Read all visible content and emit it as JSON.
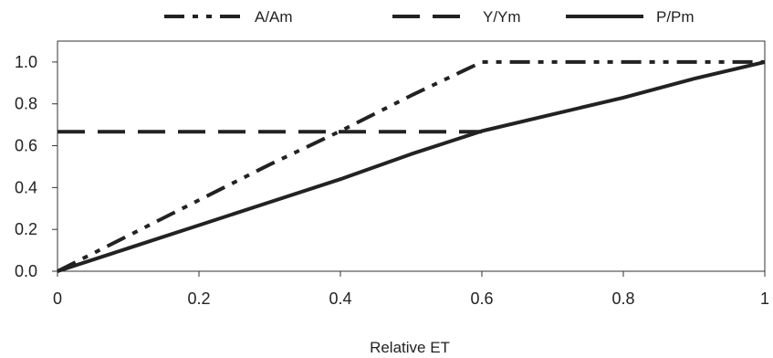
{
  "chart_data": {
    "type": "line",
    "xlabel": "Relative ET",
    "ylabel": "",
    "xlim": [
      0,
      1
    ],
    "ylim": [
      0,
      1.1
    ],
    "x_ticks": [
      "0",
      "0.2",
      "0.4",
      "0.6",
      "0.8",
      "1"
    ],
    "y_ticks": [
      "0.0",
      "0.2",
      "0.4",
      "0.6",
      "0.8",
      "1.0"
    ],
    "legend_position": "top",
    "grid": false,
    "series": [
      {
        "name": "A/Am",
        "style": "dash-dot-dot",
        "color": "#222222",
        "x": [
          0,
          0.1,
          0.2,
          0.3,
          0.4,
          0.5,
          0.6,
          0.7,
          0.8,
          0.9,
          1.0
        ],
        "y": [
          0,
          0.17,
          0.34,
          0.51,
          0.67,
          0.84,
          1.0,
          1.0,
          1.0,
          1.0,
          1.0
        ]
      },
      {
        "name": "Y/Ym",
        "style": "dash",
        "color": "#222222",
        "x": [
          0,
          0.6
        ],
        "y": [
          0.667,
          0.667
        ]
      },
      {
        "name": "P/Pm",
        "style": "solid",
        "color": "#222222",
        "x": [
          0,
          0.1,
          0.2,
          0.3,
          0.4,
          0.5,
          0.6,
          0.7,
          0.8,
          0.9,
          1.0
        ],
        "y": [
          0,
          0.11,
          0.22,
          0.33,
          0.44,
          0.56,
          0.67,
          0.75,
          0.83,
          0.92,
          1.0
        ]
      }
    ]
  }
}
